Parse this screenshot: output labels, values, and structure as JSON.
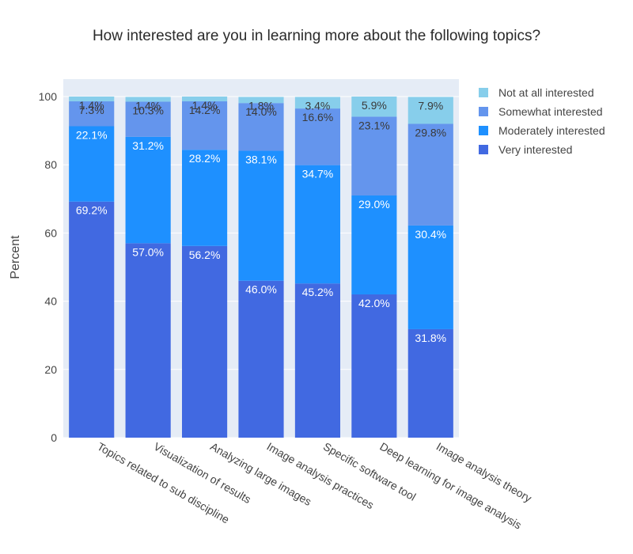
{
  "chart_data": {
    "type": "bar",
    "stacked": true,
    "title": "How interested are you in learning more about the following topics?",
    "xlabel": "",
    "ylabel": "Percent",
    "ylim": [
      0,
      100
    ],
    "yticks": [
      0,
      20,
      40,
      60,
      80,
      100
    ],
    "grid": true,
    "legend_position": "top-right",
    "categories": [
      "Topics related to sub discipline",
      "Visualization of results",
      "Analyzing large images",
      "Image analysis practices",
      "Specific software tool",
      "Deep learning for image analysis",
      "Image analysis theory"
    ],
    "series": [
      {
        "name": "Very interested",
        "color": "#4169E1",
        "values": [
          69.2,
          57.0,
          56.2,
          46.0,
          45.2,
          42.0,
          31.8
        ],
        "labels": [
          "69.2%",
          "57.0%",
          "56.2%",
          "46.0%",
          "45.2%",
          "42.0%",
          "31.8%"
        ],
        "label_color": "#ffffff"
      },
      {
        "name": "Moderately interested",
        "color": "#1E90FF",
        "values": [
          22.1,
          31.2,
          28.2,
          38.1,
          34.7,
          29.0,
          30.4
        ],
        "labels": [
          "22.1%",
          "31.2%",
          "28.2%",
          "38.1%",
          "34.7%",
          "29.0%",
          "30.4%"
        ],
        "label_color": "#ffffff"
      },
      {
        "name": "Somewhat interested",
        "color": "#6495ED",
        "values": [
          7.3,
          10.3,
          14.2,
          14.0,
          16.6,
          23.1,
          29.8
        ],
        "labels": [
          "7.3%",
          "10.3%",
          "14.2%",
          "14.0%",
          "16.6%",
          "23.1%",
          "29.8%"
        ],
        "label_color": "#3a3a3a"
      },
      {
        "name": "Not at all interested",
        "color": "#87CEEB",
        "values": [
          1.4,
          1.4,
          1.4,
          1.8,
          3.4,
          5.9,
          7.9
        ],
        "labels": [
          "1.4%",
          "1.4%",
          "1.4%",
          "1.8%",
          "3.4%",
          "5.9%",
          "7.9%"
        ],
        "label_color": "#3a3a3a"
      }
    ],
    "legend_order": [
      "Not at all interested",
      "Somewhat interested",
      "Moderately interested",
      "Very interested"
    ],
    "plot_background": "#E5ECF6",
    "grid_color": "#ffffff"
  }
}
